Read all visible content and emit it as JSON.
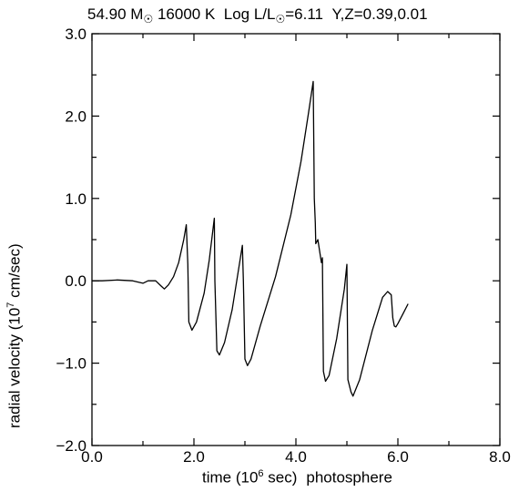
{
  "chart_data": {
    "type": "line",
    "title": {
      "mass": "54.90",
      "mass_unit": "M",
      "temperature": "16000 K",
      "lum_label": "Log L/L",
      "lum_value": "=6.11",
      "composition": "Y,Z=0.39,0.01"
    },
    "xlabel": {
      "pre": "time (10",
      "exp": "6",
      "post": " sec)",
      "extra": "photosphere"
    },
    "ylabel": {
      "pre": "radial velocity (10",
      "exp": "7",
      "post": " cm/sec)"
    },
    "xlim": [
      0.0,
      8.0
    ],
    "ylim": [
      -2.0,
      3.0
    ],
    "x_ticks": [
      "0.0",
      "2.0",
      "4.0",
      "6.0",
      "8.0"
    ],
    "y_ticks": [
      "−2.0",
      "−1.0",
      "0.0",
      "1.0",
      "2.0",
      "3.0"
    ],
    "grid": false,
    "series": [
      {
        "points": [
          [
            0.0,
            0.0
          ],
          [
            0.2,
            0.0
          ],
          [
            0.5,
            0.01
          ],
          [
            0.8,
            0.0
          ],
          [
            1.0,
            -0.03
          ],
          [
            1.1,
            0.0
          ],
          [
            1.25,
            0.0
          ],
          [
            1.35,
            -0.06
          ],
          [
            1.42,
            -0.1
          ],
          [
            1.5,
            -0.05
          ],
          [
            1.6,
            0.05
          ],
          [
            1.7,
            0.22
          ],
          [
            1.8,
            0.5
          ],
          [
            1.85,
            0.68
          ],
          [
            1.88,
            0.2
          ],
          [
            1.9,
            -0.5
          ],
          [
            1.96,
            -0.6
          ],
          [
            2.05,
            -0.5
          ],
          [
            2.2,
            -0.15
          ],
          [
            2.3,
            0.25
          ],
          [
            2.4,
            0.76
          ],
          [
            2.41,
            0.0
          ],
          [
            2.45,
            -0.85
          ],
          [
            2.5,
            -0.9
          ],
          [
            2.6,
            -0.75
          ],
          [
            2.75,
            -0.35
          ],
          [
            2.95,
            0.43
          ],
          [
            2.97,
            0.0
          ],
          [
            3.0,
            -0.95
          ],
          [
            3.05,
            -1.03
          ],
          [
            3.12,
            -0.95
          ],
          [
            3.3,
            -0.55
          ],
          [
            3.6,
            0.05
          ],
          [
            3.9,
            0.8
          ],
          [
            4.1,
            1.45
          ],
          [
            4.25,
            2.05
          ],
          [
            4.34,
            2.42
          ],
          [
            4.36,
            1.0
          ],
          [
            4.38,
            0.7
          ],
          [
            4.39,
            0.45
          ],
          [
            4.43,
            0.5
          ],
          [
            4.48,
            0.3
          ],
          [
            4.5,
            0.22
          ],
          [
            4.52,
            0.28
          ],
          [
            4.54,
            -1.1
          ],
          [
            4.58,
            -1.22
          ],
          [
            4.65,
            -1.15
          ],
          [
            4.8,
            -0.7
          ],
          [
            4.95,
            -0.1
          ],
          [
            5.0,
            0.2
          ],
          [
            5.02,
            -1.2
          ],
          [
            5.08,
            -1.35
          ],
          [
            5.12,
            -1.4
          ],
          [
            5.25,
            -1.2
          ],
          [
            5.5,
            -0.6
          ],
          [
            5.7,
            -0.2
          ],
          [
            5.8,
            -0.13
          ],
          [
            5.87,
            -0.17
          ],
          [
            5.9,
            -0.45
          ],
          [
            5.93,
            -0.55
          ],
          [
            5.96,
            -0.56
          ],
          [
            6.0,
            -0.52
          ],
          [
            6.1,
            -0.4
          ],
          [
            6.2,
            -0.28
          ]
        ]
      }
    ]
  }
}
